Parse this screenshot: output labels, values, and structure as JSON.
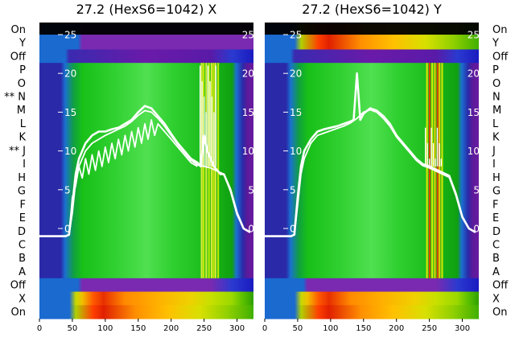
{
  "chart_data": [
    {
      "type": "heatmap",
      "title": "27.2 (HexS6=1042) X",
      "row_labels_top_to_bottom": [
        "On",
        "Y",
        "Off",
        "P",
        "O",
        "N",
        "M",
        "L",
        "K",
        "J",
        "I",
        "H",
        "G",
        "F",
        "E",
        "D",
        "C",
        "B",
        "A",
        "Off",
        "X",
        "On"
      ],
      "marked_rows": [
        "N",
        "J"
      ],
      "row_marker": "**",
      "x_ticks": [
        0,
        50,
        100,
        150,
        200,
        250,
        300
      ],
      "xlim": [
        0,
        325
      ],
      "overlay_y_ticks": [
        0,
        5,
        10,
        15,
        20,
        25
      ],
      "overlay_ylim": [
        -2,
        26
      ],
      "overlay_line_color": "#ffffff",
      "bright_columns_x": [
        245,
        248,
        252,
        256,
        260,
        263,
        266,
        270
      ],
      "grid": false,
      "series": [
        {
          "x": [
            0,
            30,
            40,
            45,
            50,
            55,
            60,
            70,
            80,
            90,
            100,
            110,
            120,
            130,
            140,
            150,
            160,
            170,
            180,
            190,
            200,
            210,
            220,
            230,
            240,
            245,
            250,
            255,
            260,
            265,
            270,
            275,
            280,
            290,
            300,
            310,
            320
          ],
          "y": [
            -1,
            -1,
            -1,
            -0.8,
            3,
            7,
            9,
            11,
            12,
            12.5,
            12.5,
            12.8,
            13,
            13.5,
            14,
            15,
            15.8,
            15.5,
            14.5,
            13.5,
            12.2,
            11,
            10,
            9,
            8.5,
            8,
            12,
            10,
            9,
            8,
            7.5,
            7,
            7,
            5,
            2,
            0,
            -0.5
          ]
        },
        {
          "x": [
            0,
            30,
            40,
            45,
            50,
            55,
            60,
            70,
            80,
            90,
            100,
            110,
            120,
            130,
            140,
            150,
            160,
            170,
            180,
            190,
            200,
            210,
            220,
            230,
            240,
            250,
            260,
            270,
            280,
            290,
            300,
            310,
            320
          ],
          "y": [
            -1,
            -1,
            -1,
            -0.8,
            2,
            6,
            8,
            10,
            11,
            11.5,
            12,
            12.4,
            12.8,
            13.2,
            13.8,
            14.6,
            15.2,
            15,
            14.2,
            13.2,
            12,
            10.8,
            9.8,
            8.8,
            8.2,
            8,
            7.8,
            7.4,
            7,
            4.8,
            1.8,
            0,
            -0.5
          ]
        },
        {
          "x": [
            0,
            30,
            40,
            45,
            50,
            55,
            60,
            65,
            70,
            75,
            80,
            85,
            90,
            95,
            100,
            105,
            110,
            115,
            120,
            125,
            130,
            135,
            140,
            145,
            150,
            155,
            160,
            165,
            170,
            175,
            180,
            190,
            200,
            210,
            220,
            230,
            240
          ],
          "y": [
            -1,
            -1,
            -1,
            -0.8,
            4,
            5.5,
            8,
            6.5,
            9,
            7,
            9.5,
            7.5,
            10,
            8,
            10.5,
            8.5,
            11,
            9,
            11.5,
            9.5,
            12,
            10,
            12.5,
            10.5,
            13,
            11,
            13.5,
            11.5,
            14,
            12,
            13.5,
            12.5,
            11.5,
            10.5,
            9.5,
            8.5,
            8
          ]
        }
      ]
    },
    {
      "type": "heatmap",
      "title": "27.2 (HexS6=1042) Y",
      "row_labels_top_to_bottom": [
        "On",
        "Y",
        "Off",
        "P",
        "O",
        "N",
        "M",
        "L",
        "K",
        "J",
        "I",
        "H",
        "G",
        "F",
        "E",
        "D",
        "C",
        "B",
        "A",
        "Off",
        "X",
        "On"
      ],
      "x_ticks": [
        0,
        50,
        100,
        150,
        200,
        250,
        300
      ],
      "xlim": [
        0,
        325
      ],
      "overlay_y_ticks": [
        0,
        5,
        10,
        15,
        20,
        25
      ],
      "overlay_ylim": [
        -2,
        26
      ],
      "overlay_line_color": "#ffffff",
      "bright_columns_x": [
        245,
        249,
        253,
        257,
        261,
        264,
        268
      ],
      "grid": false,
      "series": [
        {
          "x": [
            0,
            30,
            40,
            45,
            50,
            55,
            60,
            70,
            80,
            90,
            100,
            110,
            120,
            130,
            135,
            140,
            145,
            150,
            160,
            170,
            180,
            190,
            200,
            210,
            220,
            230,
            240,
            250,
            260,
            270,
            280,
            290,
            300,
            310,
            320
          ],
          "y": [
            -1,
            -1,
            -1,
            -0.8,
            4,
            8,
            10,
            11.5,
            12.5,
            12.8,
            13,
            13.2,
            13.5,
            13.8,
            14,
            20,
            14,
            14.8,
            15.5,
            15.2,
            14.5,
            13.5,
            12,
            11,
            10,
            9,
            8.3,
            8,
            7.6,
            7.2,
            6.8,
            4.5,
            1.5,
            0,
            -0.5
          ]
        },
        {
          "x": [
            0,
            30,
            40,
            45,
            50,
            55,
            60,
            70,
            80,
            90,
            100,
            110,
            120,
            130,
            140,
            150,
            160,
            170,
            180,
            190,
            200,
            210,
            220,
            230,
            240,
            250,
            260,
            270,
            280,
            290,
            300,
            310,
            320
          ],
          "y": [
            -1,
            -1,
            -1,
            -0.8,
            3,
            7,
            9,
            11,
            12,
            12.3,
            12.6,
            12.9,
            13.2,
            13.6,
            14.2,
            15,
            15.3,
            15,
            14.2,
            13.2,
            11.8,
            10.8,
            9.8,
            8.8,
            8.1,
            7.8,
            7.4,
            7,
            6.6,
            4.3,
            1.4,
            0,
            -0.5
          ]
        }
      ]
    }
  ]
}
